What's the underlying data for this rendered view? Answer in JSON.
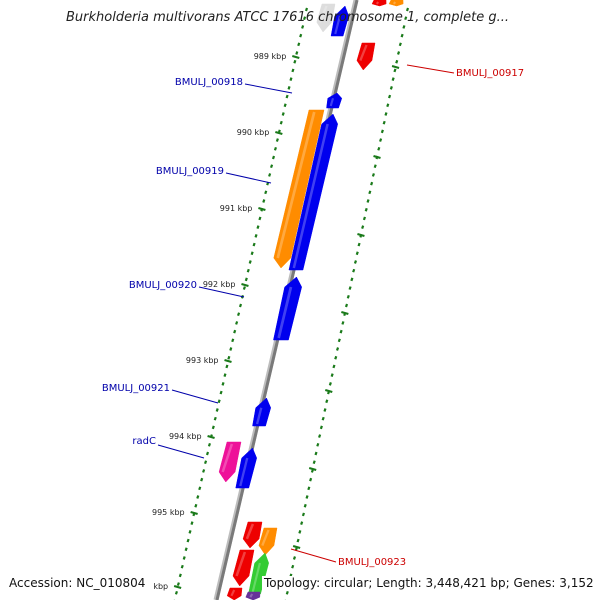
{
  "header": {
    "title": "Burkholderia multivorans ATCC 17616 chromosome 1, complete g..."
  },
  "footer": {
    "accession": "Accession: NC_010804",
    "summary": "Topology: circular; Length: 3,448,421 bp; Genes: 3,152"
  },
  "colors": {
    "backbone": "#7a7a7a",
    "tick": "#1a7a1a",
    "forward_label": "#0000aa",
    "reverse_label": "#cc0000",
    "blue": "#0000ee",
    "orange": "#ff8c00",
    "magenta": "#ee1199",
    "red": "#ee0000",
    "green": "#33cc33",
    "purple": "#663399"
  },
  "ticks": [
    {
      "label": "989 kbp"
    },
    {
      "label": "990 kbp"
    },
    {
      "label": "991 kbp"
    },
    {
      "label": "992 kbp"
    },
    {
      "label": "993 kbp"
    },
    {
      "label": "994 kbp"
    },
    {
      "label": "995 kbp"
    },
    {
      "label": "kbp"
    }
  ],
  "gene_labels": [
    {
      "id": "BMULJ_00917",
      "strand": "reverse"
    },
    {
      "id": "BMULJ_00918",
      "strand": "forward"
    },
    {
      "id": "BMULJ_00919",
      "strand": "forward"
    },
    {
      "id": "BMULJ_00920",
      "strand": "forward"
    },
    {
      "id": "BMULJ_00921",
      "strand": "forward"
    },
    {
      "id": "radC",
      "strand": "forward"
    },
    {
      "id": "BMULJ_00923",
      "strand": "reverse"
    }
  ]
}
